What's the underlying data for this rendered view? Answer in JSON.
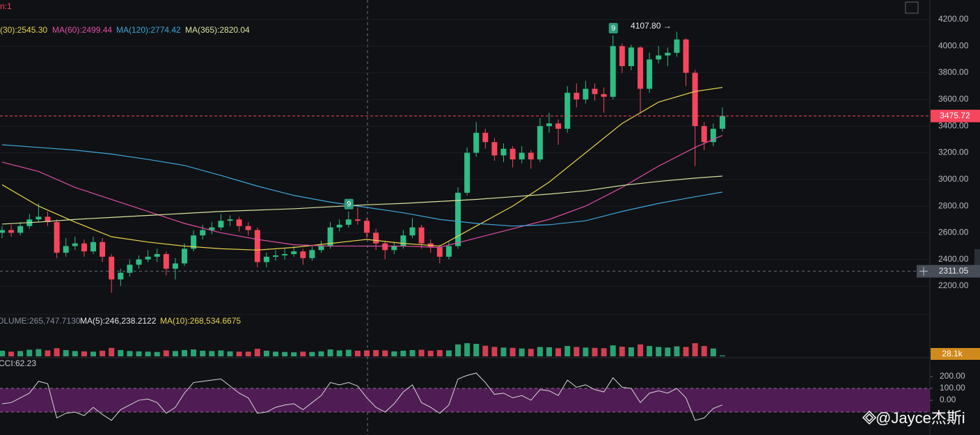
{
  "chart_data": [
    {
      "type": "candlestick",
      "top_label": "n:1",
      "up_color": "#2ebd85",
      "down_color": "#f6465d",
      "ylim": [
        1986,
        4346
      ],
      "yticks": [
        {
          "value": 2200,
          "label": "2200.00"
        },
        {
          "value": 2400,
          "label": "2400.00"
        },
        {
          "value": 2600,
          "label": "2600.00"
        },
        {
          "value": 2800,
          "label": "2800.00"
        },
        {
          "value": 3000,
          "label": "3000.00"
        },
        {
          "value": 3200,
          "label": "3200.00"
        },
        {
          "value": 3400,
          "label": "3400.00"
        },
        {
          "value": 3600,
          "label": "3600.00"
        },
        {
          "value": 3800,
          "label": "3800.00"
        },
        {
          "value": 4000,
          "label": "4000.00"
        },
        {
          "value": 4200,
          "label": "4200.00"
        }
      ],
      "grid": true,
      "ohlc": [
        [
          2600,
          2650,
          2560,
          2620
        ],
        [
          2620,
          2660,
          2570,
          2600
        ],
        [
          2600,
          2680,
          2580,
          2650
        ],
        [
          2650,
          2740,
          2630,
          2700
        ],
        [
          2700,
          2820,
          2680,
          2720
        ],
        [
          2720,
          2760,
          2650,
          2680
        ],
        [
          2680,
          2700,
          2410,
          2450
        ],
        [
          2450,
          2560,
          2420,
          2500
        ],
        [
          2500,
          2570,
          2470,
          2520
        ],
        [
          2520,
          2550,
          2420,
          2460
        ],
        [
          2460,
          2570,
          2440,
          2530
        ],
        [
          2530,
          2560,
          2380,
          2420
        ],
        [
          2420,
          2440,
          2150,
          2250
        ],
        [
          2250,
          2330,
          2200,
          2300
        ],
        [
          2300,
          2400,
          2270,
          2360
        ],
        [
          2360,
          2430,
          2330,
          2400
        ],
        [
          2400,
          2470,
          2380,
          2420
        ],
        [
          2420,
          2480,
          2380,
          2440
        ],
        [
          2440,
          2460,
          2280,
          2330
        ],
        [
          2330,
          2410,
          2250,
          2370
        ],
        [
          2370,
          2520,
          2350,
          2480
        ],
        [
          2480,
          2620,
          2460,
          2580
        ],
        [
          2580,
          2660,
          2550,
          2620
        ],
        [
          2620,
          2680,
          2590,
          2640
        ],
        [
          2640,
          2740,
          2620,
          2690
        ],
        [
          2690,
          2730,
          2650,
          2700
        ],
        [
          2700,
          2720,
          2610,
          2650
        ],
        [
          2650,
          2680,
          2580,
          2620
        ],
        [
          2620,
          2640,
          2340,
          2380
        ],
        [
          2380,
          2450,
          2340,
          2420
        ],
        [
          2420,
          2470,
          2390,
          2430
        ],
        [
          2430,
          2480,
          2400,
          2440
        ],
        [
          2440,
          2500,
          2420,
          2460
        ],
        [
          2460,
          2480,
          2360,
          2410
        ],
        [
          2410,
          2500,
          2390,
          2470
        ],
        [
          2470,
          2540,
          2450,
          2500
        ],
        [
          2500,
          2680,
          2480,
          2640
        ],
        [
          2640,
          2700,
          2610,
          2660
        ],
        [
          2660,
          2760,
          2640,
          2700
        ],
        [
          2700,
          2790,
          2660,
          2690
        ],
        [
          2690,
          2710,
          2560,
          2600
        ],
        [
          2600,
          2630,
          2470,
          2520
        ],
        [
          2520,
          2540,
          2400,
          2470
        ],
        [
          2470,
          2530,
          2440,
          2500
        ],
        [
          2500,
          2620,
          2480,
          2580
        ],
        [
          2580,
          2710,
          2560,
          2640
        ],
        [
          2640,
          2660,
          2480,
          2520
        ],
        [
          2520,
          2550,
          2450,
          2490
        ],
        [
          2490,
          2510,
          2370,
          2420
        ],
        [
          2420,
          2530,
          2400,
          2500
        ],
        [
          2500,
          2940,
          2480,
          2900
        ],
        [
          2900,
          3240,
          2880,
          3200
        ],
        [
          3200,
          3430,
          3170,
          3350
        ],
        [
          3350,
          3380,
          3230,
          3280
        ],
        [
          3280,
          3310,
          3140,
          3180
        ],
        [
          3180,
          3270,
          3130,
          3230
        ],
        [
          3230,
          3250,
          3090,
          3150
        ],
        [
          3150,
          3250,
          3120,
          3200
        ],
        [
          3200,
          3220,
          3080,
          3150
        ],
        [
          3150,
          3460,
          3130,
          3400
        ],
        [
          3400,
          3500,
          3350,
          3420
        ],
        [
          3420,
          3450,
          3260,
          3380
        ],
        [
          3380,
          3700,
          3350,
          3650
        ],
        [
          3650,
          3720,
          3540,
          3600
        ],
        [
          3600,
          3740,
          3570,
          3680
        ],
        [
          3680,
          3720,
          3590,
          3640
        ],
        [
          3640,
          3690,
          3500,
          3620
        ],
        [
          3620,
          4080,
          3600,
          4000
        ],
        [
          4000,
          4020,
          3800,
          3850
        ],
        [
          3850,
          4010,
          3820,
          3990
        ],
        [
          3990,
          4000,
          3500,
          3680
        ],
        [
          3680,
          3950,
          3650,
          3900
        ],
        [
          3900,
          4000,
          3870,
          3930
        ],
        [
          3930,
          3990,
          3850,
          3950
        ],
        [
          3950,
          4107.8,
          3920,
          4050
        ],
        [
          4050,
          4060,
          3700,
          3800
        ],
        [
          3800,
          3820,
          3100,
          3400
        ],
        [
          3400,
          3430,
          3220,
          3280
        ],
        [
          3280,
          3420,
          3250,
          3380
        ],
        [
          3380,
          3540,
          3360,
          3475.72
        ]
      ],
      "ma_x": [
        0,
        4,
        8,
        12,
        16,
        20,
        24,
        28,
        32,
        36,
        40,
        44,
        48,
        52,
        56,
        60,
        64,
        68,
        72,
        76,
        79
      ],
      "series": [
        {
          "name": "(30):2545.30",
          "color": "#e8d44d",
          "values": [
            2960,
            2800,
            2680,
            2570,
            2530,
            2500,
            2480,
            2470,
            2490,
            2520,
            2550,
            2520,
            2500,
            2650,
            2800,
            2980,
            3200,
            3420,
            3580,
            3660,
            3690
          ]
        },
        {
          "name": "MA(60):2499.44",
          "color": "#e04fa6",
          "values": [
            3130,
            3060,
            2940,
            2850,
            2760,
            2670,
            2600,
            2550,
            2510,
            2500,
            2500,
            2500,
            2490,
            2560,
            2630,
            2700,
            2800,
            2940,
            3100,
            3240,
            3330
          ]
        },
        {
          "name": "MA(120):2774.42",
          "color": "#3ea6dc",
          "values": [
            3260,
            3240,
            3220,
            3190,
            3150,
            3105,
            3030,
            2950,
            2880,
            2830,
            2790,
            2750,
            2700,
            2670,
            2650,
            2660,
            2690,
            2760,
            2820,
            2870,
            2905
          ]
        },
        {
          "name": "MA(365):2820.04",
          "color": "#d6e59e",
          "values": [
            2665,
            2680,
            2700,
            2715,
            2730,
            2745,
            2760,
            2770,
            2780,
            2795,
            2810,
            2820,
            2835,
            2850,
            2870,
            2890,
            2915,
            2955,
            2985,
            3010,
            3025
          ]
        }
      ],
      "last_price": 3475.72,
      "crosshair_price": 2311.05,
      "high_annotation": "4107.80 →",
      "markers": [
        {
          "x": 67,
          "label": "9"
        },
        {
          "x": 38,
          "label": "9"
        }
      ]
    },
    {
      "type": "bar",
      "legend": [
        "OLUME:265,747.7130",
        "MA(5):246,238.2122",
        "MA(10):268,534.6675"
      ],
      "legend_colors": [
        "#848e9c",
        "#e6e6e6",
        "#e8d44d"
      ],
      "ylim": [
        0,
        1000000
      ],
      "values": [
        180000,
        150000,
        170000,
        210000,
        230000,
        190000,
        260000,
        200000,
        170000,
        160000,
        150000,
        180000,
        270000,
        200000,
        170000,
        160000,
        150000,
        140000,
        190000,
        170000,
        200000,
        220000,
        180000,
        170000,
        190000,
        160000,
        150000,
        150000,
        240000,
        180000,
        150000,
        140000,
        130000,
        150000,
        140000,
        160000,
        220000,
        190000,
        210000,
        180000,
        190000,
        200000,
        190000,
        160000,
        180000,
        200000,
        210000,
        180000,
        200000,
        190000,
        380000,
        420000,
        400000,
        340000,
        300000,
        280000,
        270000,
        250000,
        240000,
        300000,
        290000,
        260000,
        330000,
        300000,
        280000,
        270000,
        260000,
        350000,
        310000,
        290000,
        380000,
        330000,
        300000,
        280000,
        320000,
        300000,
        420000,
        330000,
        250000,
        28100
      ],
      "last_value_label": "28.1k"
    },
    {
      "type": "line",
      "legend": "CCI:62.23",
      "color": "#d8d8d8",
      "ylim": [
        -294,
        324
      ],
      "yticks": [
        {
          "value": 200,
          "label": "200.00"
        },
        {
          "value": 100,
          "label": "100.00"
        },
        {
          "value": 0,
          "label": "0.00"
        }
      ],
      "band": [
        -100,
        100
      ],
      "values": [
        -30,
        -20,
        20,
        60,
        160,
        140,
        -150,
        -110,
        -100,
        -130,
        -60,
        -120,
        -170,
        -80,
        -40,
        0,
        10,
        -20,
        -110,
        -60,
        60,
        150,
        160,
        170,
        180,
        120,
        60,
        20,
        -110,
        -100,
        -60,
        -40,
        -30,
        -80,
        -20,
        40,
        150,
        130,
        150,
        120,
        20,
        -60,
        -100,
        -30,
        70,
        130,
        -20,
        -60,
        -110,
        -40,
        180,
        210,
        230,
        150,
        50,
        60,
        20,
        40,
        0,
        90,
        80,
        40,
        170,
        110,
        130,
        90,
        70,
        190,
        110,
        100,
        -20,
        60,
        80,
        60,
        100,
        20,
        -170,
        -150,
        -70,
        -40
      ]
    }
  ],
  "watermark": "@Jayce杰斯i"
}
